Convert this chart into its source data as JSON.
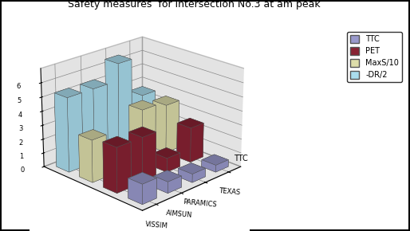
{
  "title": "Safety measures  for intersection No.3 at am peak",
  "simulators": [
    "VISSIM",
    "AIMSUN",
    "PARAMICS",
    "TEXAS"
  ],
  "measures": [
    "TTC",
    "PET",
    "MaxS/10",
    "-DR/2"
  ],
  "values": {
    "VISSIM": [
      1.4,
      3.2,
      3.0,
      5.3
    ],
    "AIMSUN": [
      0.8,
      3.2,
      1.8,
      5.3
    ],
    "PARAMICS": [
      0.6,
      1.0,
      3.8,
      6.5
    ],
    "TEXAS": [
      0.5,
      2.5,
      3.5,
      3.6
    ]
  },
  "bar_colors": [
    "#9999cc",
    "#882233",
    "#ddddaa",
    "#aaddee"
  ],
  "pane_color": "#c8c8c8",
  "legend_labels": [
    "TTC",
    "PET",
    "MaxS/10",
    "-DR/2"
  ],
  "zlim": [
    0,
    7
  ],
  "zticks": [
    0,
    1,
    2,
    3,
    4,
    5,
    6
  ],
  "floor_label_ttc": "TTC",
  "floor_label_dr": "-DR/2",
  "title_fontsize": 9,
  "tick_fontsize": 6,
  "legend_fontsize": 7
}
